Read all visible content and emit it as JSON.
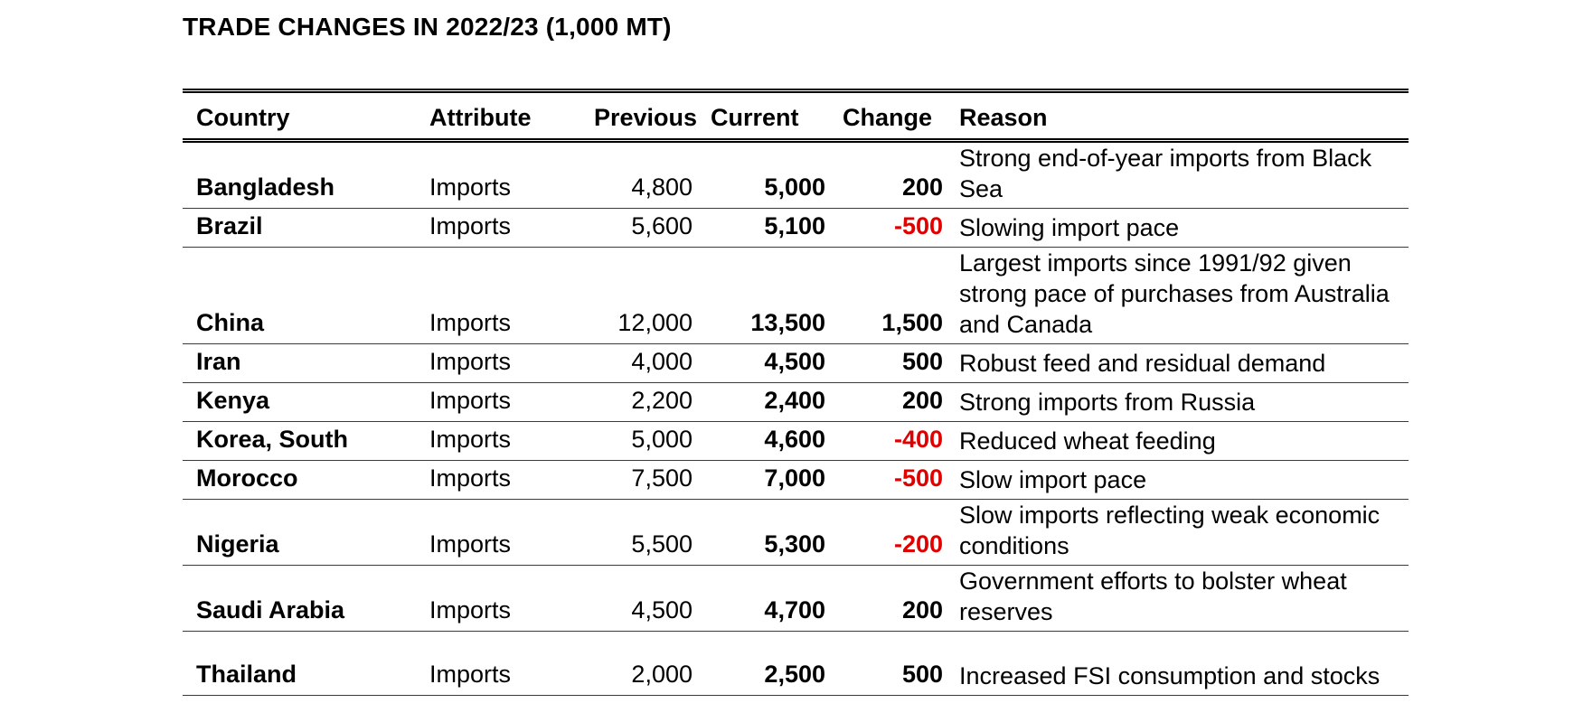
{
  "title": "TRADE CHANGES IN 2022/23 (1,000 MT)",
  "colors": {
    "text": "#000000",
    "negative": "#e00000",
    "rule": "#000000"
  },
  "chart_data": {
    "type": "table",
    "title": "TRADE CHANGES IN 2022/23 (1,000 MT)",
    "columns": [
      "Country",
      "Attribute",
      "Previous",
      "Current",
      "Change",
      "Reason"
    ],
    "rows": [
      {
        "country": "Bangladesh",
        "attribute": "Imports",
        "previous": "4,800",
        "current": "5,000",
        "change": "200",
        "negative": false,
        "reason": "Strong end-of-year imports from Black Sea"
      },
      {
        "country": "Brazil",
        "attribute": "Imports",
        "previous": "5,600",
        "current": "5,100",
        "change": "-500",
        "negative": true,
        "reason": "Slowing import pace"
      },
      {
        "country": "China",
        "attribute": "Imports",
        "previous": "12,000",
        "current": "13,500",
        "change": "1,500",
        "negative": false,
        "reason": "Largest imports since 1991/92 given strong pace of purchases from Australia and Canada"
      },
      {
        "country": "Iran",
        "attribute": "Imports",
        "previous": "4,000",
        "current": "4,500",
        "change": "500",
        "negative": false,
        "reason": "Robust feed and residual demand"
      },
      {
        "country": "Kenya",
        "attribute": "Imports",
        "previous": "2,200",
        "current": "2,400",
        "change": "200",
        "negative": false,
        "reason": "Strong imports from Russia"
      },
      {
        "country": "Korea, South",
        "attribute": "Imports",
        "previous": "5,000",
        "current": "4,600",
        "change": "-400",
        "negative": true,
        "reason": "Reduced wheat feeding"
      },
      {
        "country": "Morocco",
        "attribute": "Imports",
        "previous": "7,500",
        "current": "7,000",
        "change": "-500",
        "negative": true,
        "reason": "Slow import pace"
      },
      {
        "country": "Nigeria",
        "attribute": "Imports",
        "previous": "5,500",
        "current": "5,300",
        "change": "-200",
        "negative": true,
        "reason": "Slow imports reflecting weak economic conditions"
      },
      {
        "country": "Saudi Arabia",
        "attribute": "Imports",
        "previous": "4,500",
        "current": "4,700",
        "change": "200",
        "negative": false,
        "reason": "Government efforts to bolster wheat reserves"
      },
      {
        "country": "Thailand",
        "attribute": "Imports",
        "previous": "2,000",
        "current": "2,500",
        "change": "500",
        "negative": false,
        "reason": "Increased FSI consumption and stocks"
      }
    ]
  }
}
